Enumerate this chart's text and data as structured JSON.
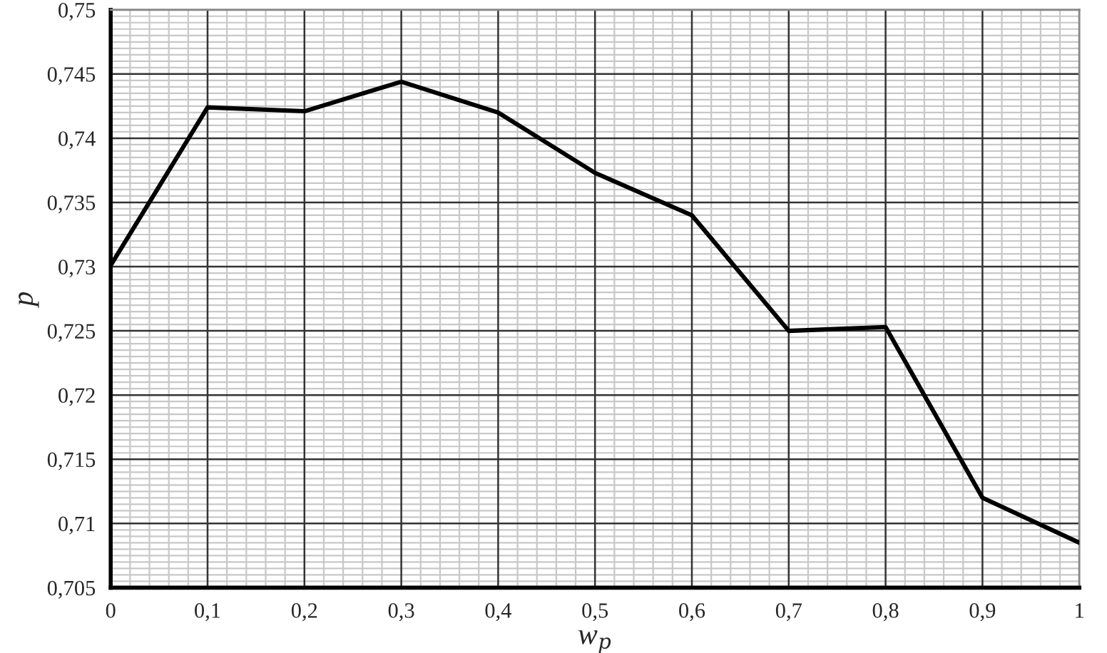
{
  "chart_data": {
    "type": "line",
    "xlabel": "w$_{p}$",
    "ylabel": "p",
    "x": [
      0,
      0.1,
      0.2,
      0.3,
      0.4,
      0.5,
      0.6,
      0.7,
      0.8,
      0.9,
      1
    ],
    "series": [
      {
        "color": "#000000",
        "values": [
          0.7301,
          0.7424,
          0.7421,
          0.7444,
          0.742,
          0.7373,
          0.734,
          0.725,
          0.7253,
          0.712,
          0.7085
        ]
      }
    ],
    "xlim": [
      0,
      1
    ],
    "ylim": [
      0.705,
      0.75
    ],
    "xticks": [
      0,
      {
        "value": 0.1,
        "label": "0,1"
      },
      {
        "value": 0.2,
        "label": "0,2"
      },
      {
        "value": 0.3,
        "label": "0,3"
      },
      {
        "value": 0.4,
        "label": "0,4"
      },
      {
        "value": 0.5,
        "label": "0,5"
      },
      {
        "value": 0.6,
        "label": "0,6"
      },
      {
        "value": 0.7,
        "label": "0,7"
      },
      {
        "value": 0.8,
        "label": "0,8"
      },
      {
        "value": 0.9,
        "label": "0,9"
      },
      1
    ],
    "yticks": [
      {
        "value": 0.705,
        "label": "0,705"
      },
      {
        "value": 0.71,
        "label": "0,71"
      },
      {
        "value": 0.715,
        "label": "0,715"
      },
      {
        "value": 0.72,
        "label": "0,72"
      },
      {
        "value": 0.725,
        "label": "0,725"
      },
      {
        "value": 0.73,
        "label": "0,73"
      },
      {
        "value": 0.735,
        "label": "0,735"
      },
      {
        "value": 0.74,
        "label": "0,74"
      },
      {
        "value": 0.745,
        "label": "0,745"
      },
      {
        "value": 0.75,
        "label": "0,75"
      }
    ],
    "grid": true,
    "marker": "none",
    "line_style": "solid"
  }
}
